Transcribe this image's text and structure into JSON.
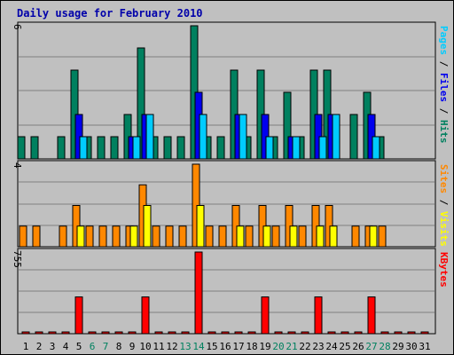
{
  "chart_data": {
    "type": "bar",
    "title": "Daily usage for February 2010",
    "days": [
      1,
      2,
      3,
      4,
      5,
      6,
      7,
      8,
      9,
      10,
      11,
      12,
      13,
      14,
      15,
      16,
      17,
      18,
      19,
      20,
      21,
      22,
      23,
      24,
      25,
      26,
      27,
      28,
      29,
      30,
      31
    ],
    "day_label_colors": {
      "weekday": "#000000",
      "weekend": "#00805f"
    },
    "weekend_days": [
      6,
      7,
      13,
      14,
      20,
      21,
      27,
      28
    ],
    "panels": [
      {
        "id": "pages-files-hits",
        "ymax": 6,
        "ymax_label": "6",
        "legend": [
          {
            "text": "Pages",
            "color": "#00ccff"
          },
          {
            "text": " / ",
            "color": "#000000"
          },
          {
            "text": "Files",
            "color": "#0000ee"
          },
          {
            "text": " / ",
            "color": "#000000"
          },
          {
            "text": "Hits",
            "color": "#00805f"
          }
        ],
        "series": [
          {
            "name": "Hits",
            "color": "#00805f",
            "values": [
              1,
              1,
              0,
              1,
              4,
              1,
              1,
              1,
              2,
              5,
              1,
              1,
              1,
              6,
              1,
              1,
              4,
              1,
              4,
              1,
              3,
              1,
              4,
              4,
              0,
              2,
              3,
              1,
              0,
              0,
              0
            ]
          },
          {
            "name": "Files",
            "color": "#0000ee",
            "values": [
              0,
              0,
              0,
              0,
              2,
              0,
              0,
              0,
              1,
              2,
              0,
              0,
              0,
              3,
              0,
              0,
              2,
              0,
              2,
              0,
              1,
              0,
              2,
              2,
              0,
              0,
              2,
              0,
              0,
              0,
              0
            ]
          },
          {
            "name": "Pages",
            "color": "#00ccff",
            "values": [
              0,
              0,
              0,
              0,
              1,
              0,
              0,
              0,
              1,
              2,
              0,
              0,
              0,
              2,
              0,
              0,
              2,
              0,
              1,
              0,
              1,
              0,
              1,
              2,
              0,
              0,
              1,
              0,
              0,
              0,
              0
            ]
          }
        ]
      },
      {
        "id": "sites-visits",
        "ymax": 4,
        "ymax_label": "4",
        "legend": [
          {
            "text": "Sites",
            "color": "#ff8800"
          },
          {
            "text": " / ",
            "color": "#000000"
          },
          {
            "text": "Visits",
            "color": "#ffff00"
          }
        ],
        "series": [
          {
            "name": "Sites",
            "color": "#ff8800",
            "values": [
              1,
              1,
              0,
              1,
              2,
              1,
              1,
              1,
              1,
              3,
              1,
              1,
              1,
              4,
              1,
              1,
              2,
              1,
              2,
              1,
              2,
              1,
              2,
              2,
              0,
              1,
              1,
              1,
              0,
              0,
              0
            ]
          },
          {
            "name": "Visits",
            "color": "#ffff00",
            "values": [
              0,
              0,
              0,
              0,
              1,
              0,
              0,
              0,
              1,
              2,
              0,
              0,
              0,
              2,
              0,
              0,
              1,
              0,
              1,
              0,
              1,
              0,
              1,
              1,
              0,
              0,
              1,
              0,
              0,
              0,
              0
            ]
          }
        ]
      },
      {
        "id": "kbytes",
        "ymax": 755,
        "ymax_label": "755",
        "legend": [
          {
            "text": "KBytes",
            "color": "#ff0000"
          }
        ],
        "series": [
          {
            "name": "KBytes",
            "color": "#ff0000",
            "values": [
              0,
              0,
              0,
              0,
              340,
              0,
              0,
              0,
              0,
              340,
              0,
              0,
              0,
              755,
              0,
              0,
              0,
              0,
              340,
              0,
              0,
              0,
              340,
              0,
              0,
              0,
              340,
              0,
              0,
              0,
              0
            ]
          }
        ]
      }
    ]
  }
}
